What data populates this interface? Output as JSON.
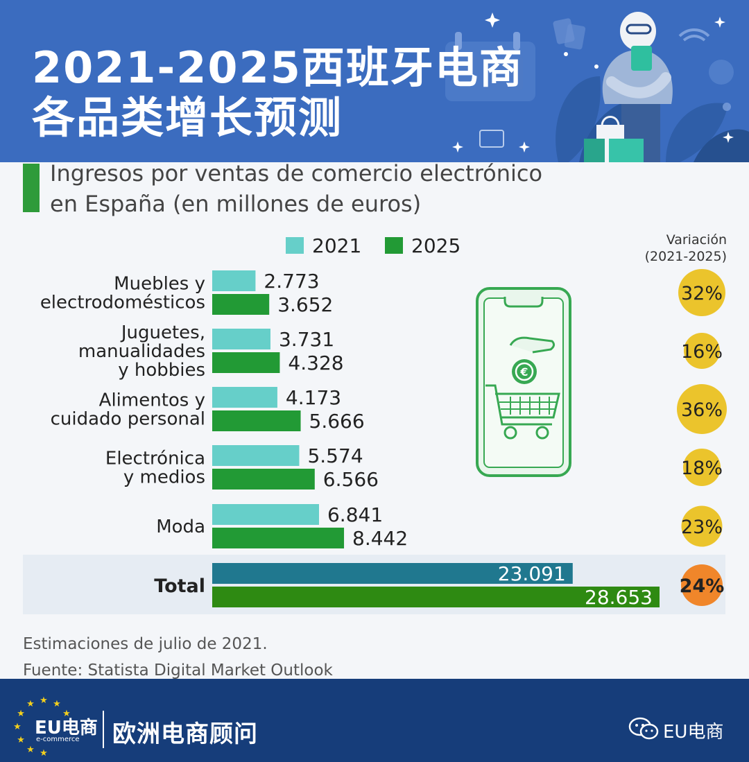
{
  "header": {
    "title_line1": "2021-2025西班牙电商",
    "title_line2": "各品类增长预测"
  },
  "subtitle": {
    "line1": "Ingresos por ventas de comercio electrónico",
    "line2": "en España (en millones de euros)"
  },
  "legend": [
    {
      "label": "2021",
      "color": "#66cfc9"
    },
    {
      "label": "2025",
      "color": "#229a35"
    }
  ],
  "variacion_header": {
    "line1": "Variación",
    "line2": "(2021-2025)"
  },
  "chart_data": {
    "type": "bar",
    "orientation": "horizontal",
    "title": "Ingresos por ventas de comercio electrónico en España (en millones de euros)",
    "categories": [
      [
        "Muebles y",
        "electrodomésticos"
      ],
      [
        "Juguetes,",
        "manualidades",
        "y hobbies"
      ],
      [
        "Alimentos y",
        "cuidado personal"
      ],
      [
        "Electrónica",
        "y medios"
      ],
      [
        "Moda"
      ]
    ],
    "series": [
      {
        "name": "2021",
        "values": [
          2773,
          3731,
          4173,
          5574,
          6841
        ],
        "labels": [
          "2.773",
          "3.731",
          "4.173",
          "5.574",
          "6.841"
        ],
        "color": "#66cfc9"
      },
      {
        "name": "2025",
        "values": [
          3652,
          4328,
          5666,
          6566,
          8442
        ],
        "labels": [
          "3.652",
          "4.328",
          "5.666",
          "6.566",
          "8.442"
        ],
        "color": "#229a35"
      }
    ],
    "variation": [
      "32%",
      "16%",
      "36%",
      "18%",
      "23%"
    ],
    "variation_values": [
      32,
      16,
      36,
      18,
      23
    ],
    "variation_color": "#ebc42c",
    "total": {
      "label": "Total",
      "values": [
        23091,
        28653
      ],
      "labels": [
        "23.091",
        "28.653"
      ],
      "colors": [
        "#20788f",
        "#2e8a12"
      ],
      "variation": "24%",
      "variation_value": 24,
      "variation_color": "#f0862a"
    },
    "xlim": [
      0,
      28653
    ],
    "legend_position": "top",
    "grid": false
  },
  "notes": {
    "line1": "Estimaciones de julio de 2021.",
    "line2": "Fuente: Statista Digital Market Outlook"
  },
  "footer": {
    "logo_main": "EU电商",
    "logo_sub": "e-commerce",
    "brand": "欧洲电商顾问",
    "account": "EU电商"
  },
  "icons": [
    "wechat-icon",
    "shopping-cart-icon",
    "euro-coin-icon",
    "smartphone-icon"
  ]
}
